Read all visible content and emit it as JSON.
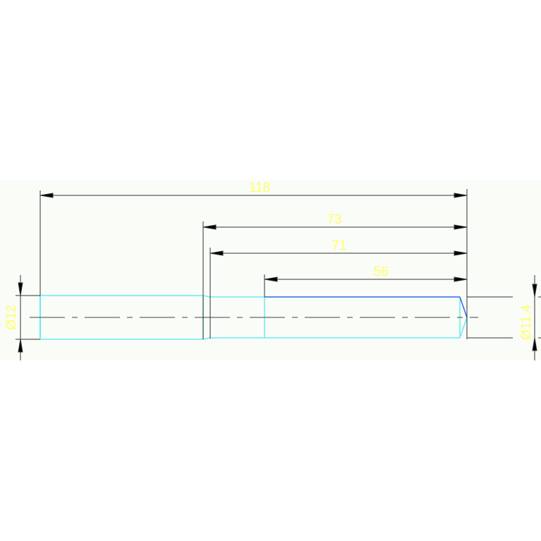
{
  "drawing": {
    "colors": {
      "background": "#ffffff",
      "drawing_area": "#fafcf8",
      "dimension_line": "#333333",
      "dimension_text": "#ffff66",
      "outline": "#66eeee",
      "edge_highlight": "#3366ee",
      "centerline": "#444444"
    },
    "dimensions": {
      "overall_length": "118",
      "length_73": "73",
      "length_71": "71",
      "length_56": "56",
      "diameter_left": "Ø12",
      "diameter_right": "Ø11.4"
    }
  }
}
